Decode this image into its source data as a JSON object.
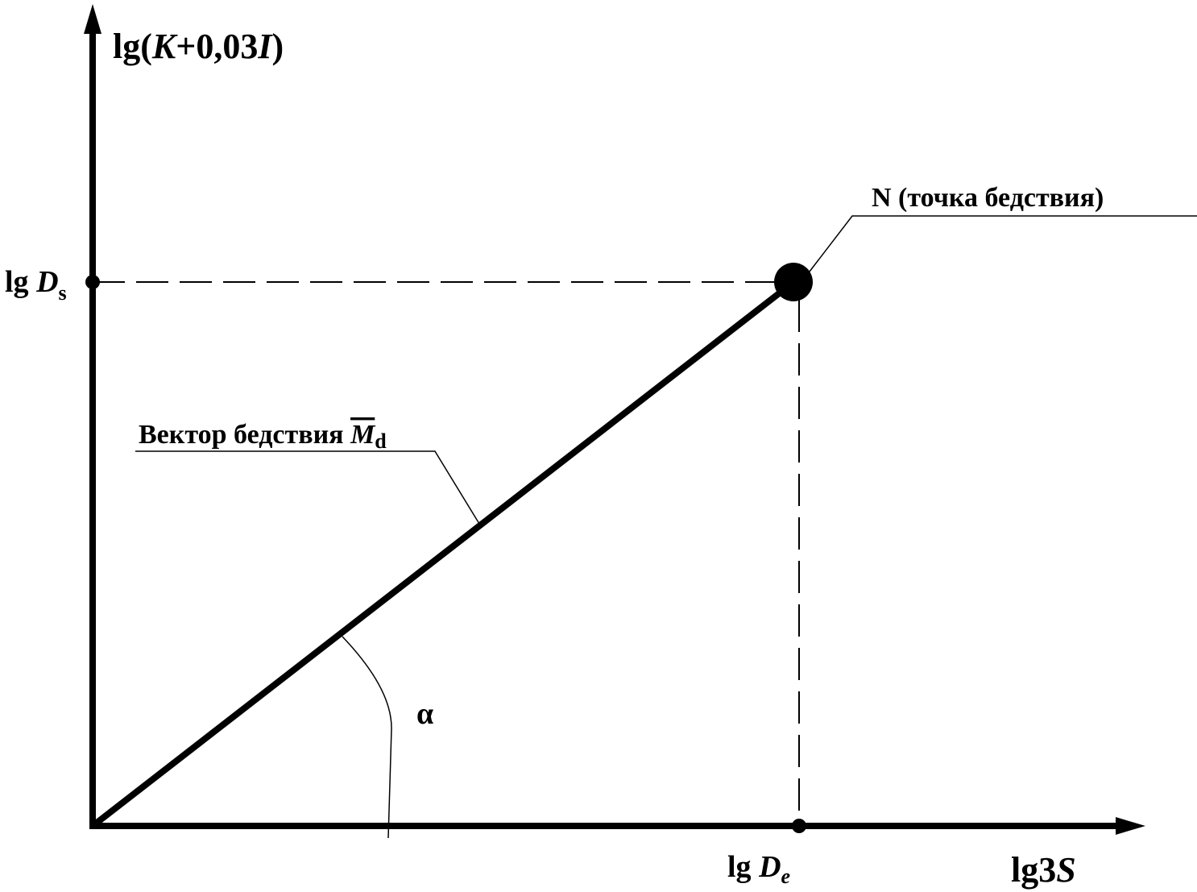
{
  "axes": {
    "y_label": {
      "prefix": "lg(",
      "var1": "K",
      "middle": "+0,03",
      "var2": "I",
      "suffix": ")"
    },
    "x_label": {
      "prefix": "lg3",
      "var": "S"
    }
  },
  "labels": {
    "ds": {
      "prefix": "lg ",
      "var": "D",
      "sub": "s"
    },
    "de": {
      "prefix": "lg ",
      "var": "D",
      "sub": "e"
    },
    "point": "N (точка бедствия)",
    "vector": {
      "text": "Вектор бедствия ",
      "var": "M",
      "sub": "d"
    },
    "angle": "α"
  }
}
